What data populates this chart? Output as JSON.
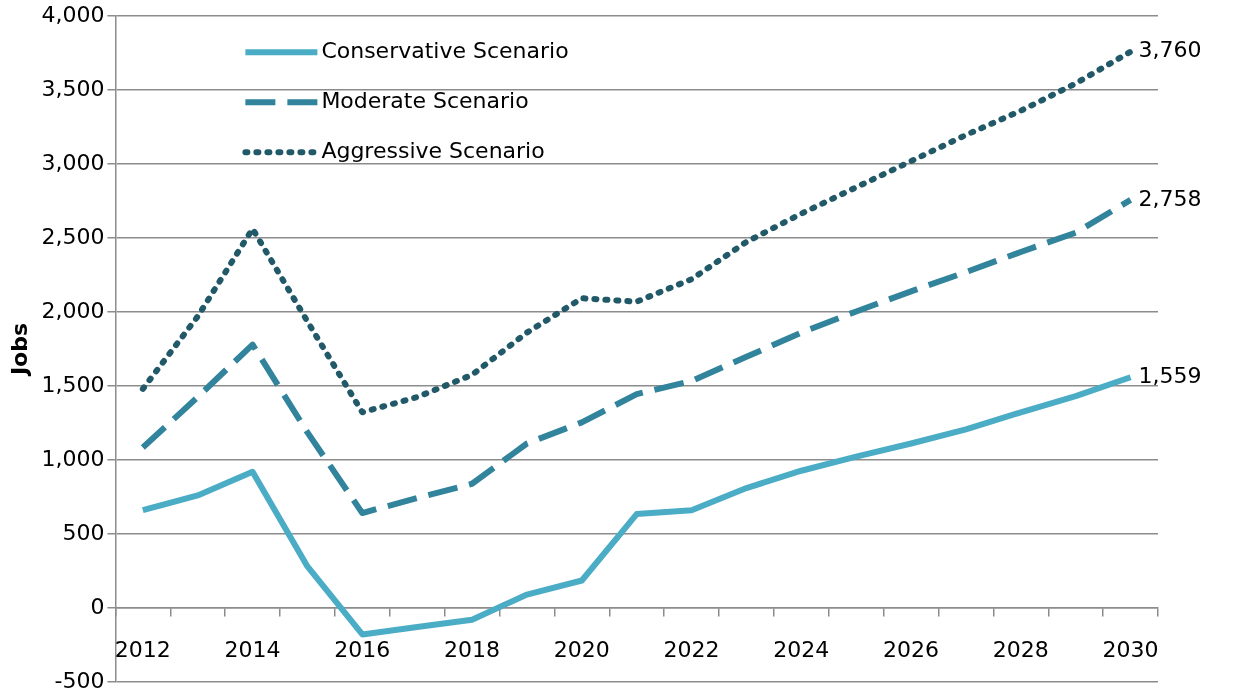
{
  "chart_data": {
    "type": "line",
    "ylabel": "Jobs",
    "categories": [
      "2012",
      null,
      "2014",
      null,
      "2016",
      null,
      "2018",
      null,
      "2020",
      null,
      "2022",
      null,
      "2024",
      null,
      "2026",
      null,
      "2028",
      null,
      "2030"
    ],
    "series": [
      {
        "name": "Conservative Scenario",
        "color": "#4bacc6",
        "line_style": "solid",
        "values": [
          660,
          760,
          920,
          280,
          -180,
          -130,
          -80,
          90,
          185,
          634,
          660,
          810,
          927,
          1022,
          1111,
          1207,
          1322,
          1431,
          1559
        ],
        "value_labels": [
          null,
          null,
          null,
          null,
          null,
          null,
          null,
          null,
          null,
          null,
          null,
          null,
          null,
          null,
          null,
          null,
          null,
          null,
          "1,559"
        ]
      },
      {
        "name": "Moderate Scenario",
        "color": "#31849b",
        "line_style": "dashed",
        "values": [
          1084,
          1425,
          1780,
          1186,
          641,
          743,
          839,
          1111,
          1254,
          1445,
          1534,
          1697,
          1861,
          2004,
          2140,
          2270,
          2406,
          2536,
          2758
        ],
        "value_labels": [
          null,
          null,
          null,
          null,
          null,
          null,
          null,
          null,
          null,
          null,
          null,
          null,
          null,
          null,
          null,
          null,
          null,
          null,
          "2,758"
        ]
      },
      {
        "name": "Aggressive Scenario",
        "color": "#215968",
        "line_style": "dotted",
        "values": [
          1480,
          1970,
          2563,
          1936,
          1322,
          1425,
          1575,
          1861,
          2093,
          2070,
          2222,
          2474,
          2665,
          2843,
          3020,
          3197,
          3361,
          3545,
          3760
        ],
        "value_labels": [
          null,
          null,
          null,
          null,
          null,
          null,
          null,
          null,
          null,
          null,
          null,
          null,
          null,
          null,
          null,
          null,
          null,
          null,
          "3,760"
        ]
      }
    ],
    "ylim": [
      -500,
      4000
    ],
    "yticks": [
      {
        "value": -500,
        "label": "-500"
      },
      0,
      500,
      {
        "value": 1000,
        "label": "1,000"
      },
      {
        "value": 1500,
        "label": "1,500"
      },
      {
        "value": 2000,
        "label": "2,000"
      },
      {
        "value": 2500,
        "label": "2,500"
      },
      {
        "value": 3000,
        "label": "3,000"
      },
      {
        "value": 3500,
        "label": "3,500"
      },
      {
        "value": 4000,
        "label": "4,000"
      }
    ],
    "grid": "y",
    "legend": "top left",
    "marker": "none"
  }
}
